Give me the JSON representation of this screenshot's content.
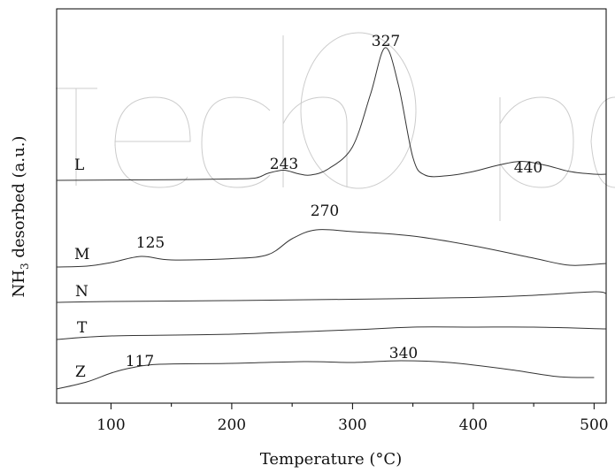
{
  "chart_data": {
    "type": "line",
    "title": "",
    "xlabel": "Temperature (°C)",
    "ylabel": "NH3 desorbed (a.u.)",
    "ylabel_parts": {
      "pre": "NH",
      "sub": "3",
      "post": " desorbed (a.u.)"
    },
    "xlim": [
      55,
      510
    ],
    "xticks": [
      100,
      200,
      300,
      400,
      500
    ],
    "yunit": "a.u.",
    "grid": false,
    "legend": "none",
    "colors": {
      "line": "#333333",
      "axis": "#000000",
      "text": "#111111",
      "watermark": "#cccccc"
    },
    "series": [
      {
        "name": "L",
        "x": [
          55,
          100,
          150,
          200,
          220,
          230,
          243,
          255,
          265,
          280,
          300,
          315,
          327,
          338,
          350,
          360,
          380,
          400,
          420,
          440,
          460,
          480,
          500,
          510
        ],
        "y": [
          2.0,
          2.4,
          2.8,
          3.6,
          4.8,
          10.0,
          13.5,
          9.5,
          8.0,
          15.0,
          40.0,
          100.0,
          152.0,
          110.0,
          28.0,
          8.0,
          7.5,
          12.0,
          19.0,
          23.5,
          19.0,
          12.0,
          9.0,
          9.0
        ]
      },
      {
        "name": "M",
        "x": [
          55,
          80,
          100,
          125,
          150,
          200,
          230,
          250,
          270,
          300,
          350,
          400,
          450,
          480,
          510
        ],
        "y": [
          0.0,
          1.0,
          5.0,
          12.0,
          8.0,
          9.5,
          14.0,
          32.0,
          42.0,
          40.0,
          35.0,
          24.0,
          10.0,
          2.0,
          4.0
        ]
      },
      {
        "name": "N",
        "x": [
          55,
          100,
          200,
          300,
          400,
          450,
          500,
          510
        ],
        "y": [
          0.0,
          1.0,
          2.0,
          3.5,
          5.5,
          8.0,
          12.0,
          10.0
        ]
      },
      {
        "name": "T",
        "x": [
          55,
          100,
          200,
          300,
          350,
          400,
          450,
          510
        ],
        "y": [
          0.0,
          4.0,
          6.0,
          11.0,
          14.0,
          14.0,
          14.0,
          12.0
        ]
      },
      {
        "name": "Z",
        "x": [
          55,
          80,
          100,
          117,
          140,
          200,
          260,
          300,
          340,
          380,
          430,
          470,
          500
        ],
        "y": [
          0.0,
          8.0,
          18.0,
          24.0,
          28.0,
          29.0,
          31.0,
          30.0,
          32.0,
          30.0,
          22.0,
          14.0,
          13.0
        ]
      }
    ],
    "series_labels": [
      "L",
      "M",
      "N",
      "T",
      "Z"
    ],
    "annotations": [
      "327",
      "243",
      "440",
      "270",
      "125",
      "340",
      "117"
    ]
  }
}
